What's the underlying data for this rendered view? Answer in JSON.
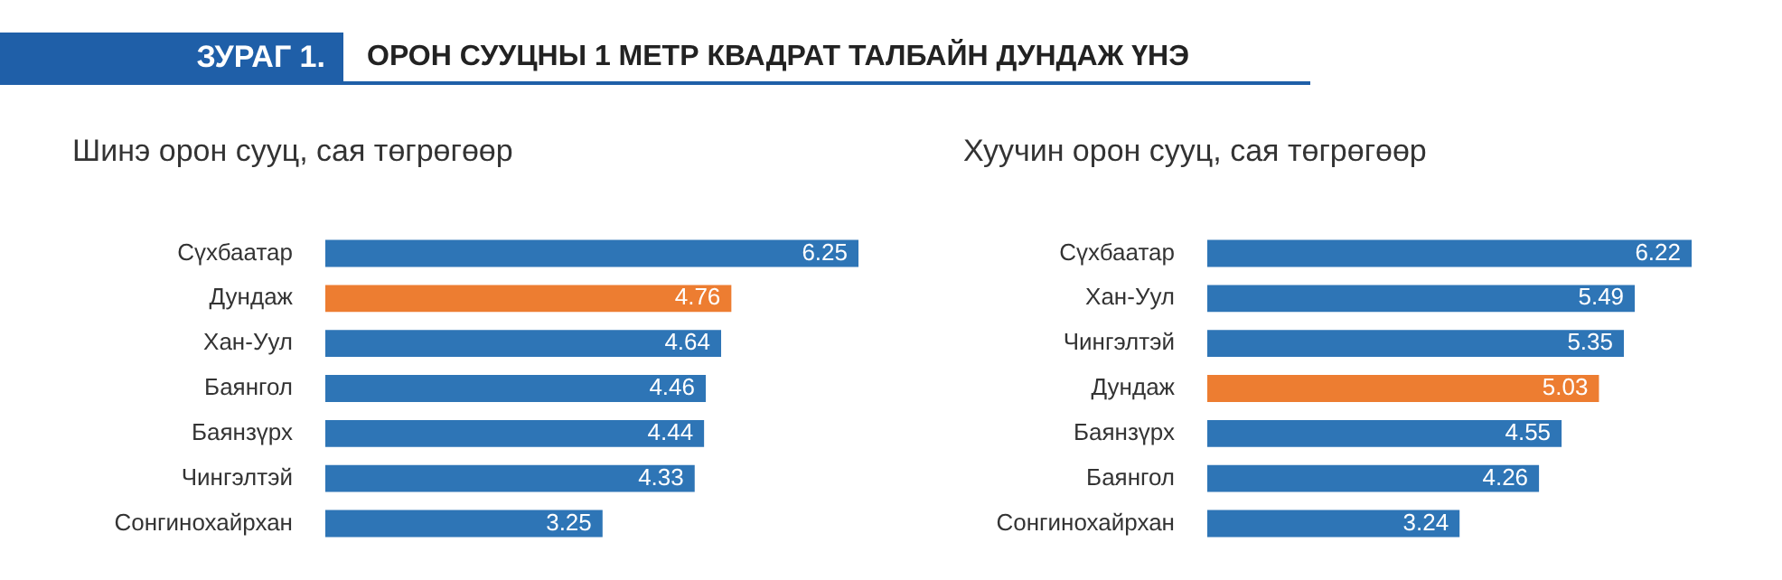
{
  "chart_data": [
    {
      "type": "other",
      "title": "ОРОН СУУЦНЫ 1 МЕТР КВАДРАТ ТАЛБАЙН ДУНДАЖ ҮНЭ",
      "annotations": [
        "ЗУРАГ 1."
      ]
    },
    {
      "type": "bar",
      "orientation": "horizontal",
      "title": "Шинэ орон сууц, сая төгрөгөөр",
      "categories": [
        "Сүхбаатар",
        "Дундаж",
        "Хан-Уул",
        "Баянгол",
        "Баянзүрх",
        "Чингэлтэй",
        "Сонгинохайрхан"
      ],
      "values": [
        6.25,
        4.76,
        4.64,
        4.46,
        4.44,
        4.33,
        3.25
      ],
      "colors": [
        "#2e75b6",
        "#ed7d31",
        "#2e75b6",
        "#2e75b6",
        "#2e75b6",
        "#2e75b6",
        "#2e75b6"
      ],
      "data_labels": true
    },
    {
      "type": "bar",
      "orientation": "horizontal",
      "title": "Хуучин орон сууц, сая төгрөгөөр",
      "categories": [
        "Сүхбаатар",
        "Хан-Уул",
        "Чингэлтэй",
        "Дундаж",
        "Баянзүрх",
        "Баянгол",
        "Сонгинохайрхан"
      ],
      "values": [
        6.22,
        5.49,
        5.35,
        5.03,
        4.55,
        4.26,
        3.24
      ],
      "colors": [
        "#2e75b6",
        "#2e75b6",
        "#2e75b6",
        "#ed7d31",
        "#2e75b6",
        "#2e75b6",
        "#2e75b6"
      ],
      "data_labels": true
    }
  ]
}
